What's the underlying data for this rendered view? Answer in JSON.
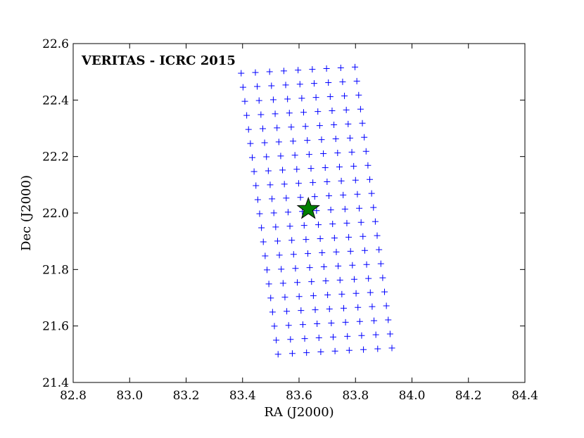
{
  "chart_data": {
    "type": "scatter",
    "title": "VERITAS - ICRC 2015",
    "xlabel": "RA (J2000)",
    "ylabel": "Dec (J2000)",
    "xlim": [
      82.8,
      84.4
    ],
    "ylim": [
      21.4,
      22.6
    ],
    "xticks": [
      "82.8",
      "83.0",
      "83.2",
      "83.4",
      "83.6",
      "83.8",
      "84.0",
      "84.2",
      "84.4"
    ],
    "yticks": [
      "21.4",
      "21.6",
      "21.8",
      "22.0",
      "22.2",
      "22.4",
      "22.6"
    ],
    "grid": false,
    "marker_color": "#0000ff",
    "star_color": "#008000",
    "grid_spec": {
      "columns": 9,
      "rows": 21,
      "top_left": [
        83.395,
        22.495
      ],
      "col_step": [
        0.0504,
        0.00275
      ],
      "row_step": [
        0.00654,
        -0.04975
      ]
    },
    "series": [
      {
        "marker": "plus",
        "color": "#0000ff",
        "points": []
      },
      {
        "marker": "star",
        "color": "#008000",
        "points": [
          [
            83.633,
            22.014
          ]
        ]
      }
    ]
  }
}
